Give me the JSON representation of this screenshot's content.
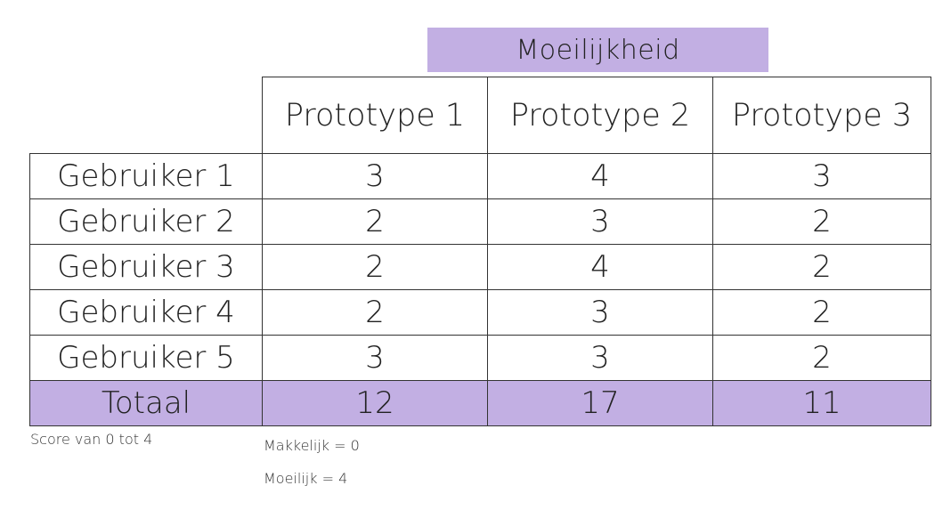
{
  "header": {
    "banner": "Moeilijkheid"
  },
  "table": {
    "columns": [
      "Prototype 1",
      "Prototype 2",
      "Prototype 3"
    ],
    "rows": [
      {
        "label": "Gebruiker 1",
        "values": [
          "3",
          "4",
          "3"
        ]
      },
      {
        "label": "Gebruiker 2",
        "values": [
          "2",
          "3",
          "2"
        ]
      },
      {
        "label": "Gebruiker 3",
        "values": [
          "2",
          "4",
          "2"
        ]
      },
      {
        "label": "Gebruiker 4",
        "values": [
          "2",
          "3",
          "2"
        ]
      },
      {
        "label": "Gebruiker 5",
        "values": [
          "3",
          "3",
          "2"
        ]
      }
    ],
    "total": {
      "label": "Totaal",
      "values": [
        "12",
        "17",
        "11"
      ]
    }
  },
  "notes": {
    "score_range": "Score van 0 tot 4",
    "easy": "Makkelijk = 0",
    "hard": "Moeilijk = 4"
  },
  "colors": {
    "highlight": "#c2afe3",
    "border": "#333333"
  }
}
